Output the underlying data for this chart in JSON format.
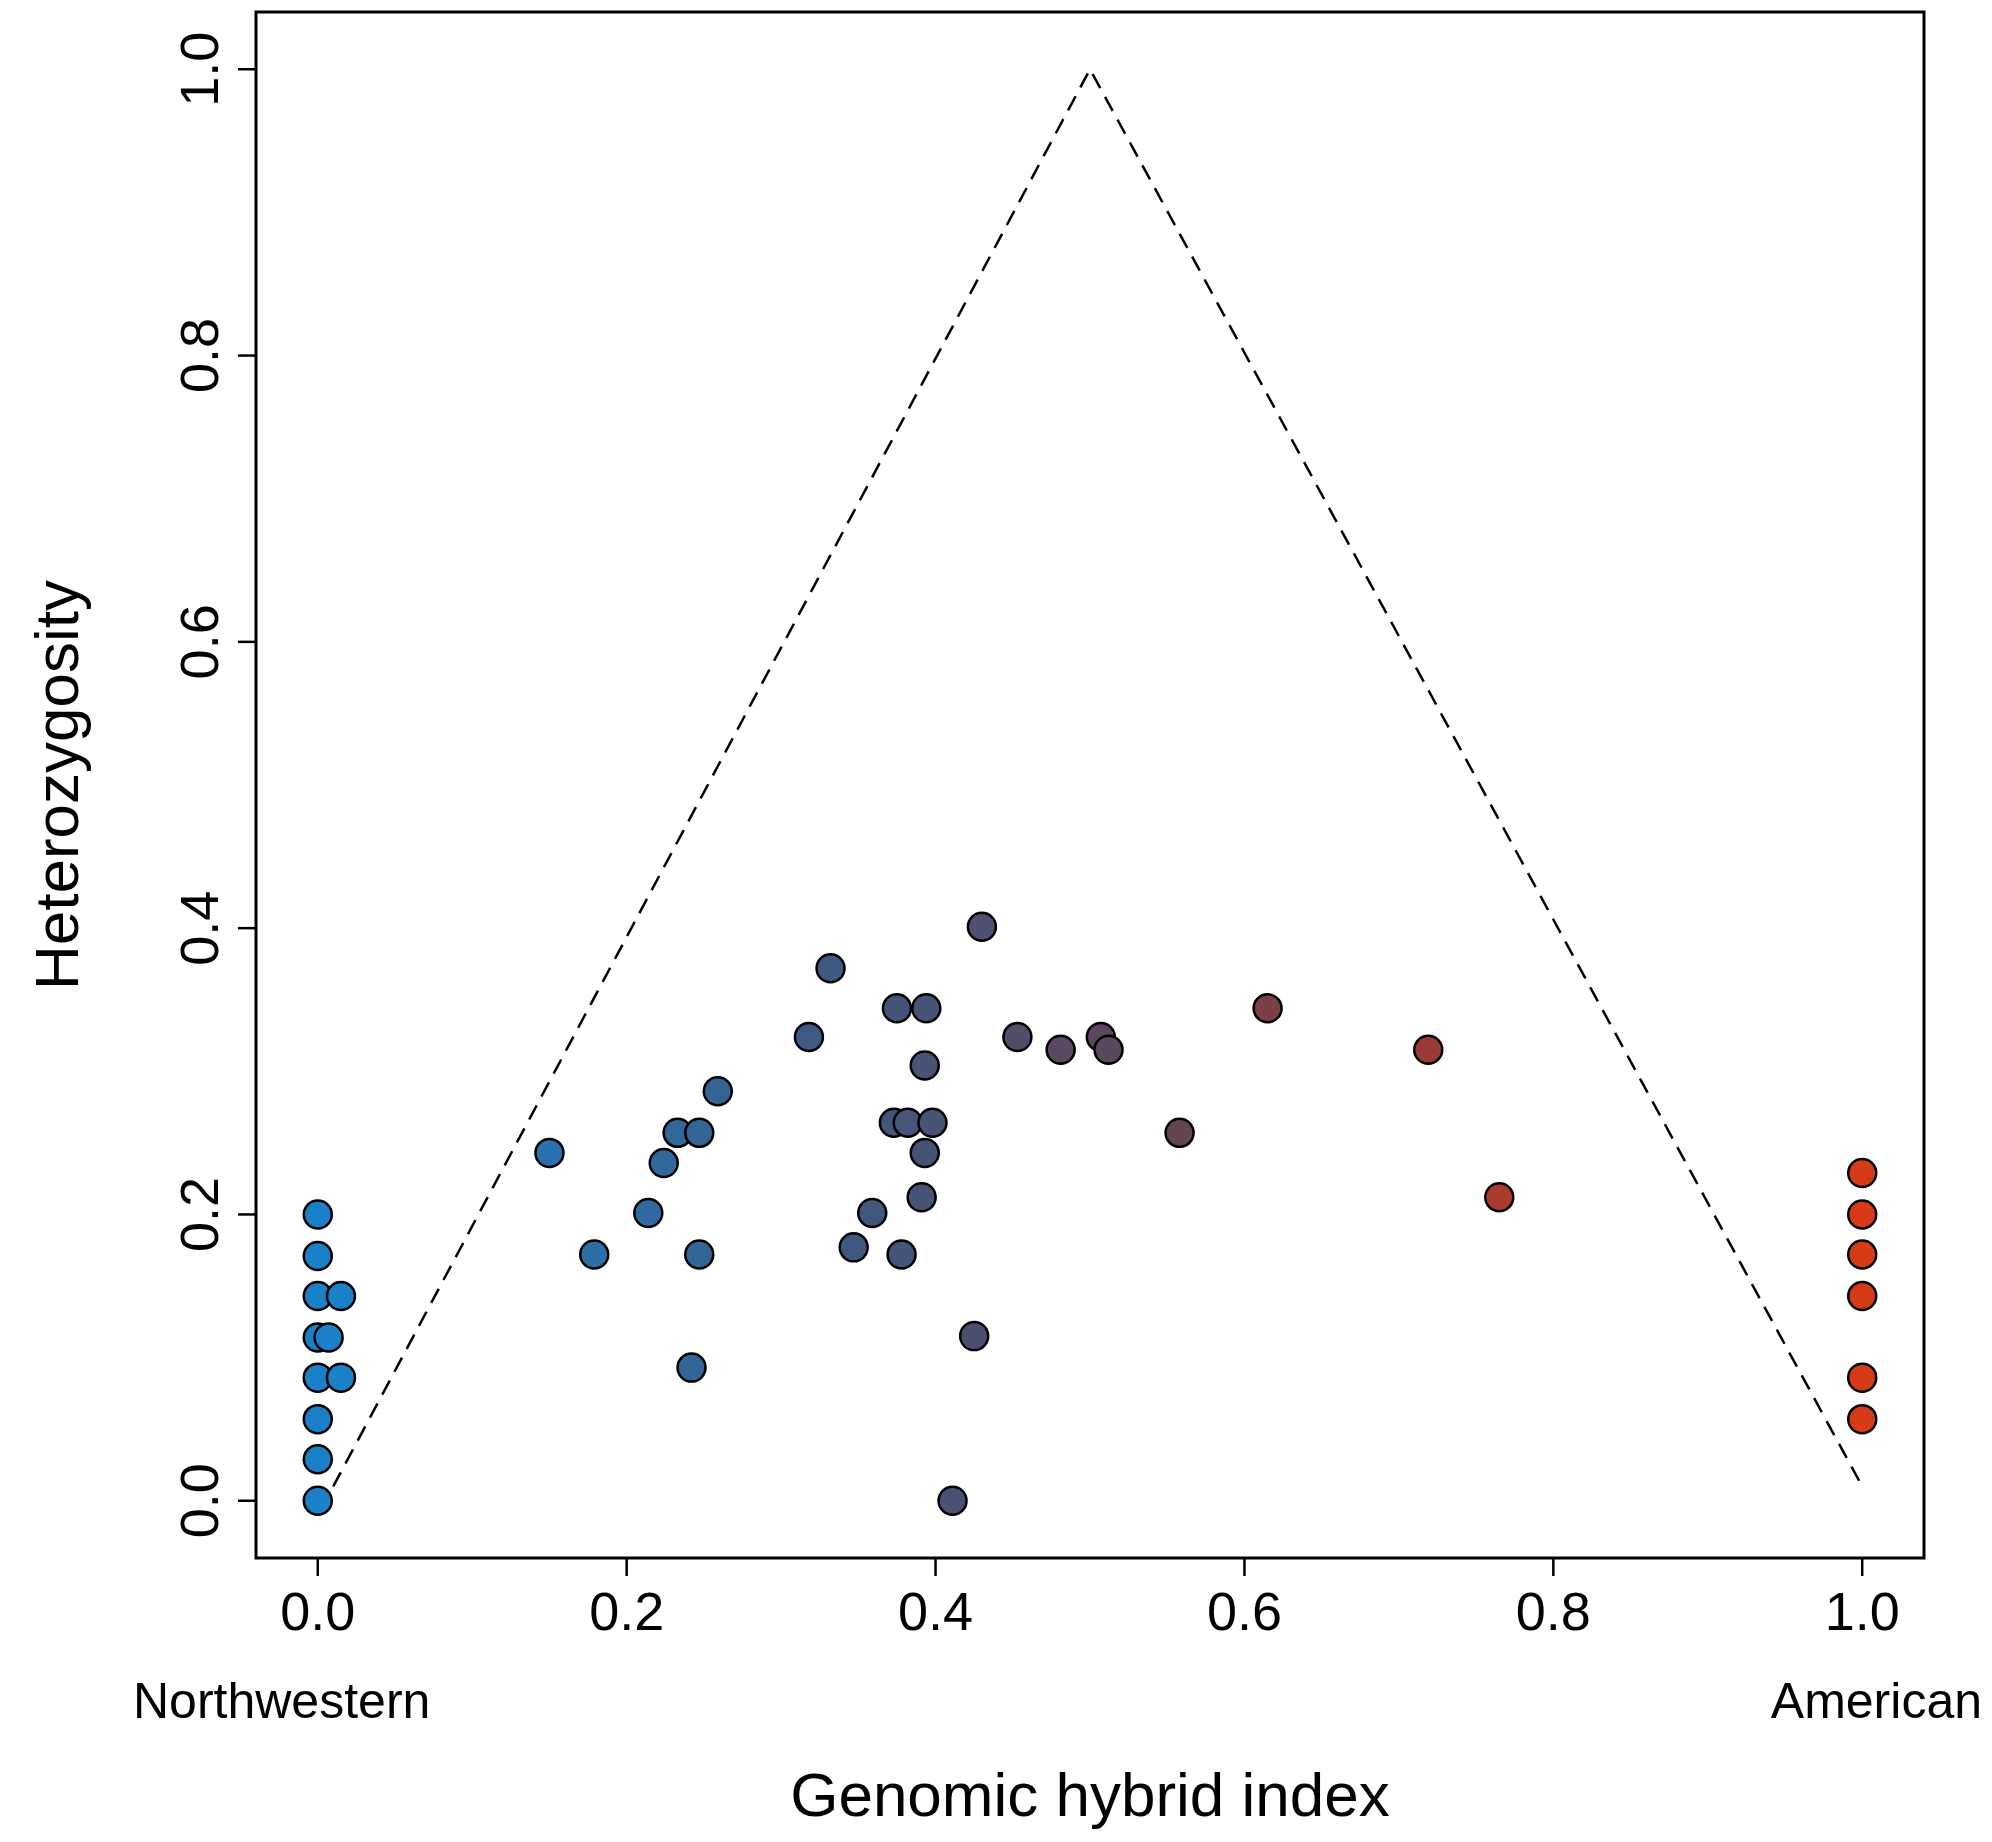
{
  "chart_data": {
    "type": "scatter",
    "xlabel": "Genomic hybrid index",
    "ylabel": "Heterozygosity",
    "xlim": [
      -0.04,
      1.04
    ],
    "ylim": [
      -0.04,
      1.04
    ],
    "xticks": [
      {
        "value": 0,
        "label": "0.0"
      },
      0.2,
      0.4,
      0.6,
      0.8,
      {
        "value": 1,
        "label": "1.0"
      }
    ],
    "yticks": [
      {
        "value": 0,
        "label": "0.0"
      },
      0.2,
      0.4,
      0.6,
      0.8,
      {
        "value": 1,
        "label": "1.0"
      }
    ],
    "grid": false,
    "annotations": [
      "Northwestern",
      "American"
    ],
    "series": [
      {
        "type": "line",
        "line_style": "dashed",
        "color": "#000000",
        "x": [
          0.01,
          0.5,
          1
        ],
        "values": [
          0.01,
          1,
          0.01
        ]
      },
      {
        "marker": "circle",
        "x": [
          0,
          0,
          0,
          0,
          0,
          0,
          0,
          0,
          0.015,
          0.007,
          0.015,
          0.15,
          0.179,
          0.214,
          0.224,
          0.233,
          0.247,
          0.242,
          0.247,
          0.259,
          0.318,
          0.332,
          0.347,
          0.359,
          0.373,
          0.375,
          0.378,
          0.382,
          0.394,
          0.393,
          0.398,
          0.393,
          0.391,
          0.425,
          0.411,
          0.43,
          0.453,
          0.481,
          0.507,
          0.512,
          0.558,
          0.615,
          0.719,
          0.765,
          1,
          1,
          1,
          1,
          1,
          1
        ],
        "values": [
          0.2,
          0.171,
          0.143,
          0.114,
          0.086,
          0.057,
          0.029,
          0,
          0.143,
          0.114,
          0.086,
          0.243,
          0.172,
          0.201,
          0.236,
          0.257,
          0.257,
          0.093,
          0.172,
          0.286,
          0.324,
          0.372,
          0.177,
          0.201,
          0.264,
          0.344,
          0.172,
          0.264,
          0.344,
          0.304,
          0.264,
          0.243,
          0.212,
          0.115,
          0,
          0.401,
          0.324,
          0.315,
          0.324,
          0.315,
          0.257,
          0.344,
          0.315,
          0.212,
          0.229,
          0.2,
          0.172,
          0.143,
          0.086,
          0.057
        ],
        "colors": [
          "#1a80c8",
          "#1a80c8",
          "#1a80c8",
          "#1a80c8",
          "#1a80c8",
          "#1a80c8",
          "#1a80c8",
          "#1a80c8",
          "#1a80c8",
          "#1a80c8",
          "#1a80c8",
          "#2a72ad",
          "#2d6ea6",
          "#306aa0",
          "#31689c",
          "#32679a",
          "#336596",
          "#336596",
          "#336596",
          "#356392",
          "#3d5b84",
          "#3e5a82",
          "#41587e",
          "#42577c",
          "#45557a",
          "#45557a",
          "#45557a",
          "#465578",
          "#475476",
          "#475476",
          "#475476",
          "#475476",
          "#475476",
          "#4c5070",
          "#4b5172",
          "#4d506e",
          "#524d68",
          "#574a62",
          "#5b4860",
          "#5b4860",
          "#64464f",
          "#7a4048",
          "#9a3a35",
          "#a83a2e",
          "#d63a17",
          "#d63a17",
          "#d63a17",
          "#d63a17",
          "#d63a17",
          "#d63a17"
        ]
      }
    ]
  }
}
